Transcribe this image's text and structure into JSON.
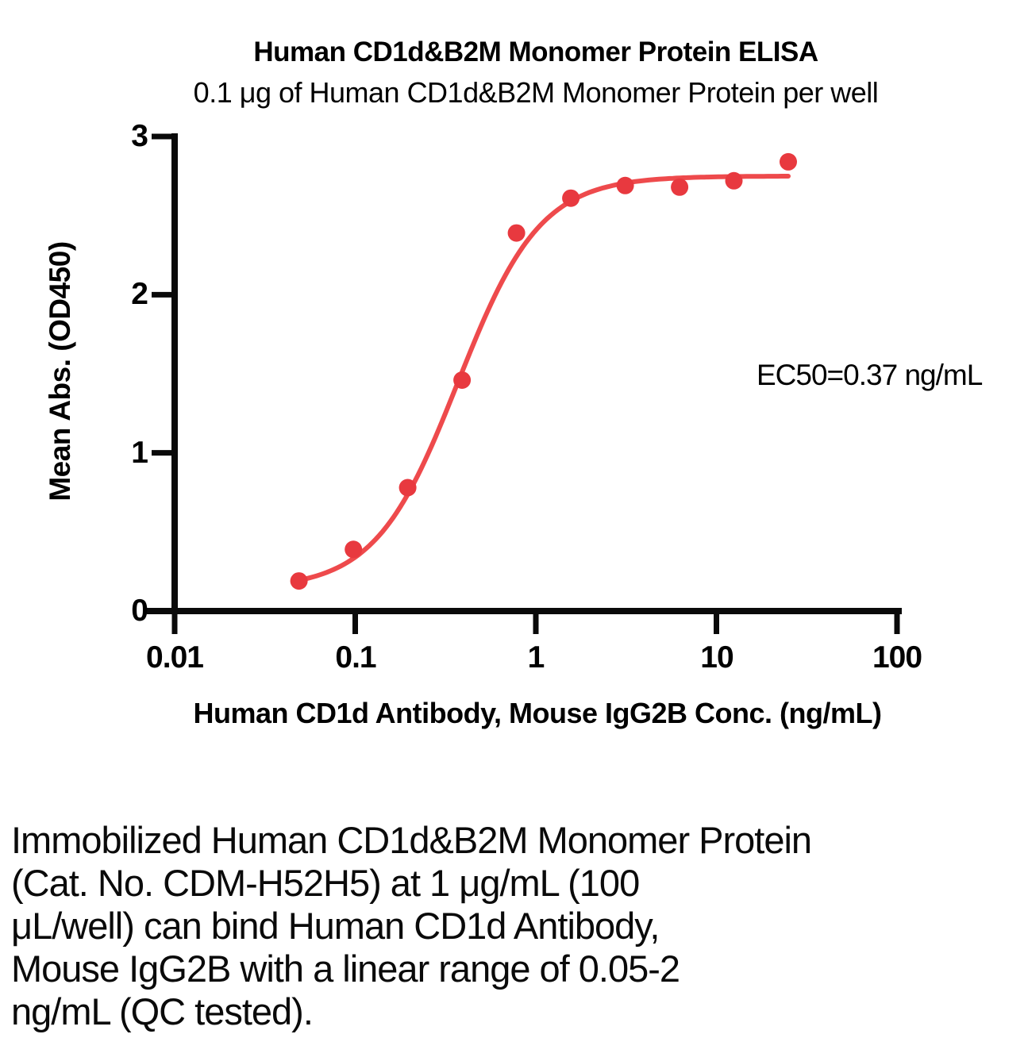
{
  "chart_data": {
    "type": "scatter",
    "title": "Human CD1d&B2M Monomer Protein ELISA",
    "subtitle": "0.1 μg of Human CD1d&B2M Monomer Protein per well",
    "xlabel": "Human CD1d Antibody, Mouse IgG2B Conc. (ng/mL)",
    "ylabel": "Mean Abs. (OD450)",
    "x_scale": "log10",
    "xlim": [
      0.01,
      100
    ],
    "ylim": [
      0,
      3
    ],
    "x_ticks": [
      0.01,
      0.1,
      1,
      10,
      100
    ],
    "x_tick_labels": [
      "0.01",
      "0.1",
      "1",
      "10",
      "100"
    ],
    "y_ticks": [
      0,
      1,
      2,
      3
    ],
    "y_tick_labels": [
      "0",
      "1",
      "2",
      "3"
    ],
    "grid": "off",
    "legend": "none",
    "annotation": "EC50=0.37 ng/mL",
    "series": [
      {
        "x": [
          0.0488,
          0.0977,
          0.1953,
          0.3906,
          0.7813,
          1.5625,
          3.125,
          6.25,
          12.5,
          25
        ],
        "y": [
          0.19,
          0.39,
          0.78,
          1.46,
          2.39,
          2.61,
          2.69,
          2.68,
          2.72,
          2.84
        ]
      }
    ],
    "fit_curve": {
      "model": "4PL",
      "bottom": 0.14,
      "top": 2.75,
      "ec50": 0.37,
      "hill": 1.9,
      "x_range": [
        0.0488,
        25
      ]
    },
    "colors": {
      "points": "#E8393F",
      "curve": "#EE4A4C",
      "axis": "#0a0a0a",
      "text": "#000000"
    }
  },
  "description": {
    "lines": [
      "Immobilized Human CD1d&B2M Monomer Protein",
      "(Cat. No. CDM-H52H5) at 1 μg/mL (100",
      "μL/well) can bind Human CD1d Antibody,",
      "Mouse IgG2B with a linear range of 0.05-2",
      "ng/mL (QC tested)."
    ]
  }
}
